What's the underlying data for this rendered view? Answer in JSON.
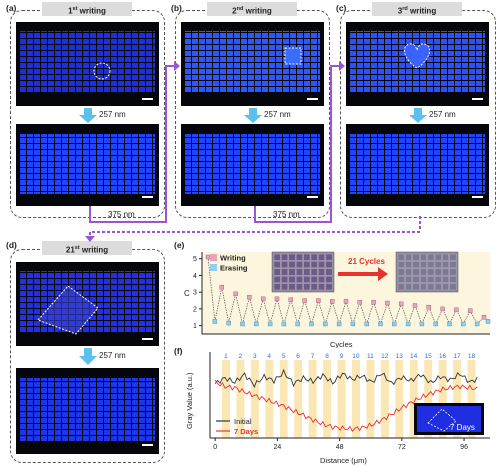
{
  "panels": {
    "a": {
      "label": "(a)",
      "tag_ordinal": "1",
      "tag_suffix": "st",
      "tag_word": "writing",
      "wavelength": "257 nm"
    },
    "b": {
      "label": "(b)",
      "tag_ordinal": "2",
      "tag_suffix": "nd",
      "tag_word": "writing",
      "wavelength": "257 nm"
    },
    "c": {
      "label": "(c)",
      "tag_ordinal": "3",
      "tag_suffix": "rd",
      "tag_word": "writing",
      "wavelength": "257 nm"
    },
    "d": {
      "label": "(d)",
      "tag_ordinal": "21",
      "tag_suffix": "st",
      "tag_word": "writing",
      "wavelength": "257 nm"
    },
    "e": {
      "label": "(e)"
    },
    "f": {
      "label": "(f)"
    }
  },
  "erase_wavelength": "375 nm",
  "colors": {
    "arrow_blue": "#5bc0ec",
    "arrow_purple": "#9b55d4",
    "pattern_blue": "#1e3dff",
    "writing_pink": "#e8a4b8",
    "erasing_blue": "#8fd0ee",
    "initial_line": "#333333",
    "seven_days_line": "#e8322d",
    "band_yellow": "#fbe7b4",
    "cycles_red": "#e8322d"
  },
  "chart_data": [
    {
      "type": "line",
      "panel": "e",
      "xlabel": "Cycles",
      "ylabel": "C",
      "ylim": [
        0.5,
        5.4
      ],
      "yticks": [
        "1",
        "2",
        "3",
        "4",
        "5"
      ],
      "legend": [
        "Writing",
        "Erasing"
      ],
      "legend_position": "top-left",
      "annotation": "21 Cycles",
      "series": [
        {
          "name": "Writing",
          "values": [
            5.1,
            3.3,
            2.9,
            2.7,
            2.6,
            2.6,
            2.55,
            2.5,
            2.5,
            2.45,
            2.45,
            2.4,
            2.4,
            2.35,
            2.3,
            2.2,
            2.1,
            2.0,
            1.95,
            1.9,
            1.5
          ]
        },
        {
          "name": "Erasing",
          "values": [
            1.25,
            1.15,
            1.1,
            1.1,
            1.1,
            1.1,
            1.1,
            1.1,
            1.1,
            1.1,
            1.1,
            1.1,
            1.1,
            1.1,
            1.1,
            1.1,
            1.1,
            1.1,
            1.1,
            1.1,
            1.25
          ]
        }
      ]
    },
    {
      "type": "line",
      "panel": "f",
      "xlabel": "Distance (μm)",
      "ylabel": "Gray Value (a.u.)",
      "xlim": [
        -2,
        106
      ],
      "xticks": [
        "0",
        "24",
        "48",
        "72",
        "96"
      ],
      "band_labels": [
        "1",
        "2",
        "3",
        "4",
        "5",
        "6",
        "7",
        "8",
        "9",
        "10",
        "11",
        "12",
        "13",
        "14",
        "15",
        "16",
        "17",
        "18"
      ],
      "legend": [
        "Initial",
        "7 Days"
      ],
      "legend_position": "bottom-left",
      "inset_label": "7 Days",
      "series": [
        {
          "name": "Initial",
          "values": [
            0.72,
            0.8,
            0.74,
            0.85,
            0.7,
            0.82,
            0.76,
            0.88,
            0.72,
            0.8,
            0.75,
            0.84,
            0.73,
            0.86,
            0.78,
            0.83,
            0.74,
            0.87,
            0.72,
            0.81,
            0.76,
            0.85,
            0.73,
            0.82,
            0.77,
            0.86,
            0.74,
            0.8
          ]
        },
        {
          "name": "7 Days",
          "values": [
            0.74,
            0.68,
            0.66,
            0.6,
            0.55,
            0.5,
            0.45,
            0.4,
            0.33,
            0.27,
            0.2,
            0.14,
            0.1,
            0.08,
            0.07,
            0.09,
            0.13,
            0.2,
            0.28,
            0.37,
            0.45,
            0.52,
            0.58,
            0.63,
            0.66,
            0.68,
            0.66,
            0.64
          ]
        }
      ]
    }
  ]
}
